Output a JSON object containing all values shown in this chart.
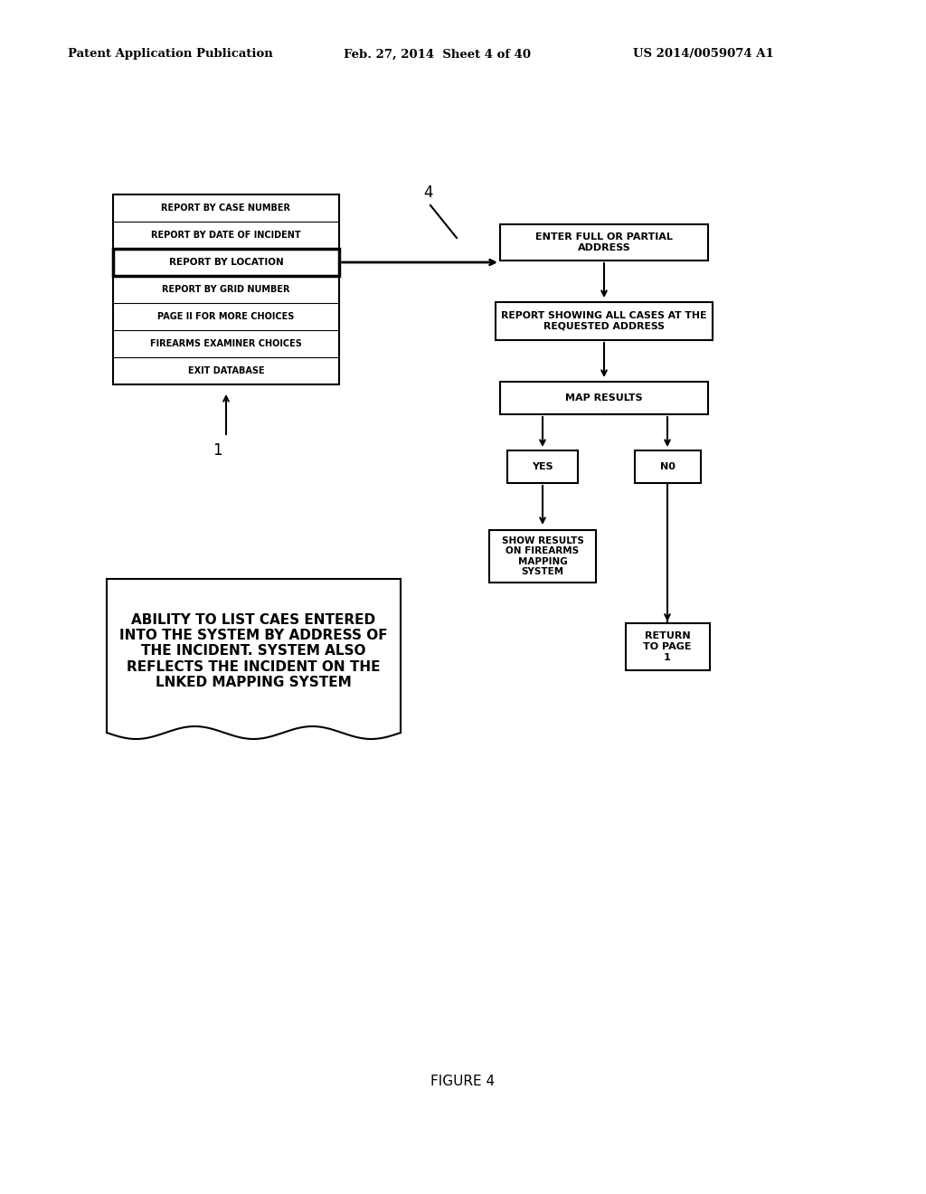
{
  "bg_color": "#ffffff",
  "header_left": "Patent Application Publication",
  "header_mid": "Feb. 27, 2014  Sheet 4 of 40",
  "header_right": "US 2014/0059074 A1",
  "figure_label": "FIGURE 4",
  "menu_items": [
    "REPORT BY CASE NUMBER",
    "REPORT BY DATE OF INCIDENT",
    "REPORT BY LOCATION",
    "REPORT BY GRID NUMBER",
    "PAGE II FOR MORE CHOICES",
    "FIREARMS EXAMINER CHOICES",
    "EXIT DATABASE"
  ],
  "highlighted_item": 2,
  "label_1": "1",
  "label_4": "4",
  "note_text": "ABILITY TO LIST CAES ENTERED\nINTO THE SYSTEM BY ADDRESS OF\nTHE INCIDENT. SYSTEM ALSO\nREFLECTS THE INCIDENT ON THE\nLNKED MAPPING SYSTEM"
}
